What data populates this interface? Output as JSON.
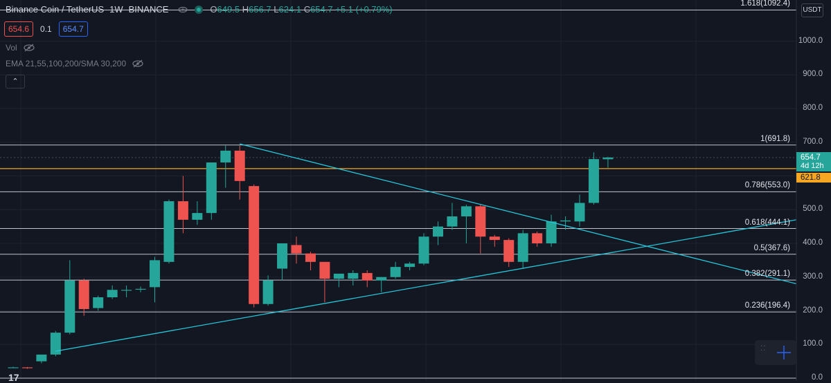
{
  "header": {
    "symbol_title": "Binance Coin / TetherUS",
    "interval": "1W",
    "exchange": "BINANCE",
    "open_label": "O",
    "open": "649.5",
    "high_label": "H",
    "high": "656.7",
    "low_label": "L",
    "low": "624.1",
    "close_label": "C",
    "close": "654.7",
    "change": "+5.1 (+0.79%)"
  },
  "trade": {
    "sell": "654.6",
    "spread": "0.1",
    "buy": "654.7"
  },
  "indicators": [
    {
      "label": "Vol"
    },
    {
      "label": "EMA 21,55,100,200/SMA 30,200"
    }
  ],
  "axis": {
    "currency": "USDT",
    "ticks": [
      "1000.0",
      "900.0",
      "800.0",
      "700.0",
      "500.0",
      "400.0",
      "300.0",
      "200.0",
      "100.0",
      "0.0"
    ],
    "current_price": "654.7",
    "countdown": "4d 12h",
    "horizontal_level": "621.8"
  },
  "fib_labels": [
    "1.618(1092.4)",
    "1(691.8)",
    "0.786(553.0)",
    "0.618(444.1)",
    "0.5(367.6)",
    "0.382(291.1)",
    "0.236(196.4)"
  ],
  "colors": {
    "bg": "#131722",
    "up": "#26a69a",
    "down": "#ef5350",
    "trendline": "#26c6da",
    "level": "#f5a623",
    "fib": "#e1e3ea"
  },
  "chart_data": {
    "type": "candlestick",
    "timeframe": "1W",
    "ylim": [
      0,
      1100
    ],
    "candles": [
      {
        "o": 30,
        "h": 34,
        "l": 30,
        "c": 32
      },
      {
        "o": 32,
        "h": 33,
        "l": 28,
        "c": 30
      },
      {
        "o": 50,
        "h": 62,
        "l": 44,
        "c": 70
      },
      {
        "o": 70,
        "h": 140,
        "l": 65,
        "c": 135
      },
      {
        "o": 135,
        "h": 350,
        "l": 130,
        "c": 290
      },
      {
        "o": 290,
        "h": 295,
        "l": 185,
        "c": 205
      },
      {
        "o": 208,
        "h": 245,
        "l": 200,
        "c": 240
      },
      {
        "o": 240,
        "h": 275,
        "l": 235,
        "c": 262
      },
      {
        "o": 262,
        "h": 275,
        "l": 240,
        "c": 262
      },
      {
        "o": 265,
        "h": 272,
        "l": 255,
        "c": 265
      },
      {
        "o": 270,
        "h": 360,
        "l": 225,
        "c": 350
      },
      {
        "o": 345,
        "h": 530,
        "l": 340,
        "c": 525
      },
      {
        "o": 525,
        "h": 600,
        "l": 430,
        "c": 470
      },
      {
        "o": 470,
        "h": 525,
        "l": 455,
        "c": 490
      },
      {
        "o": 490,
        "h": 635,
        "l": 470,
        "c": 640
      },
      {
        "o": 640,
        "h": 690,
        "l": 565,
        "c": 675
      },
      {
        "o": 675,
        "h": 690,
        "l": 530,
        "c": 585
      },
      {
        "o": 570,
        "h": 575,
        "l": 210,
        "c": 220
      },
      {
        "o": 220,
        "h": 305,
        "l": 215,
        "c": 290
      },
      {
        "o": 325,
        "h": 395,
        "l": 290,
        "c": 400
      },
      {
        "o": 395,
        "h": 420,
        "l": 340,
        "c": 370
      },
      {
        "o": 370,
        "h": 375,
        "l": 320,
        "c": 345
      },
      {
        "o": 345,
        "h": 345,
        "l": 225,
        "c": 295
      },
      {
        "o": 295,
        "h": 310,
        "l": 270,
        "c": 310
      },
      {
        "o": 295,
        "h": 320,
        "l": 275,
        "c": 312
      },
      {
        "o": 312,
        "h": 320,
        "l": 270,
        "c": 290
      },
      {
        "o": 290,
        "h": 300,
        "l": 255,
        "c": 300
      },
      {
        "o": 300,
        "h": 345,
        "l": 295,
        "c": 330
      },
      {
        "o": 330,
        "h": 345,
        "l": 320,
        "c": 340
      },
      {
        "o": 340,
        "h": 430,
        "l": 335,
        "c": 420
      },
      {
        "o": 420,
        "h": 465,
        "l": 395,
        "c": 450
      },
      {
        "o": 450,
        "h": 520,
        "l": 440,
        "c": 480
      },
      {
        "o": 480,
        "h": 515,
        "l": 400,
        "c": 510
      },
      {
        "o": 510,
        "h": 515,
        "l": 370,
        "c": 420
      },
      {
        "o": 420,
        "h": 425,
        "l": 390,
        "c": 410
      },
      {
        "o": 410,
        "h": 415,
        "l": 330,
        "c": 345
      },
      {
        "o": 345,
        "h": 440,
        "l": 325,
        "c": 430
      },
      {
        "o": 430,
        "h": 435,
        "l": 390,
        "c": 400
      },
      {
        "o": 400,
        "h": 485,
        "l": 390,
        "c": 465
      },
      {
        "o": 465,
        "h": 480,
        "l": 440,
        "c": 468
      },
      {
        "o": 465,
        "h": 545,
        "l": 450,
        "c": 520
      },
      {
        "o": 520,
        "h": 670,
        "l": 515,
        "c": 650
      },
      {
        "o": 649.5,
        "h": 656.7,
        "l": 624.1,
        "c": 654.7
      }
    ],
    "fibonacci_levels": [
      {
        "ratio": "1.618",
        "price": 1092.4
      },
      {
        "ratio": "1",
        "price": 691.8
      },
      {
        "ratio": "0.786",
        "price": 553.0
      },
      {
        "ratio": "0.618",
        "price": 444.1
      },
      {
        "ratio": "0.5",
        "price": 367.6
      },
      {
        "ratio": "0.382",
        "price": 291.1
      },
      {
        "ratio": "0.236",
        "price": 196.4
      },
      {
        "ratio": "0",
        "price": 0
      }
    ],
    "horizontal_line": 621.8,
    "current_price": 654.7,
    "trendlines": [
      {
        "from": {
          "bar": 3,
          "price": 80
        },
        "to": {
          "bar": "beyond_last",
          "price": 470
        }
      },
      {
        "from": {
          "bar": 16,
          "price": 695
        },
        "to": {
          "bar": "beyond_last",
          "price": 280
        }
      }
    ]
  }
}
